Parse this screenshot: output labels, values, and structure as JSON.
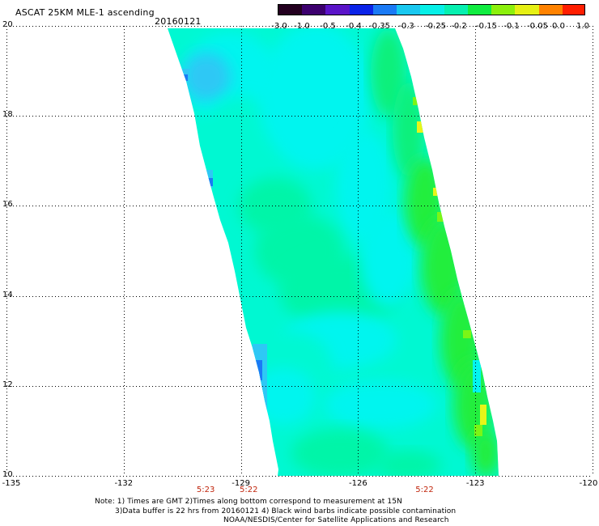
{
  "header": {
    "title": "ASCAT 25KM MLE-1 ascending",
    "date": "20160121"
  },
  "colorbar": {
    "labels": [
      "-3.0",
      "-1.0",
      "-0.5",
      "-0.4",
      "-0.35",
      "-0.3",
      "-0.25",
      "-0.2",
      "-0.15",
      "-0.1",
      "-0.05",
      "0.0",
      "1.0"
    ],
    "colors": [
      "#23001f",
      "#3c006e",
      "#5a14c8",
      "#0a23e8",
      "#1a7af5",
      "#19c8f0",
      "#06f0e8",
      "#06f0b0",
      "#10ec40",
      "#8cf00c",
      "#e6f014",
      "#ff8200",
      "#ff1e00"
    ]
  },
  "map": {
    "lat_labels": [
      "20",
      "18",
      "16",
      "14",
      "12",
      "10"
    ],
    "lon_labels": [
      "-135",
      "-132",
      "-129",
      "-126",
      "-123",
      "-120"
    ],
    "lat_values": [
      20,
      18,
      16,
      14,
      12,
      10
    ],
    "lon_values": [
      -135,
      -132,
      -129,
      -126,
      -123,
      -120
    ],
    "lon_range": [
      -135,
      -120
    ],
    "lat_range": [
      10,
      20
    ],
    "gridlines": "dotted",
    "swath_colors": {
      "cyan": "#03f5ef",
      "aqua": "#00f8d2",
      "teal_green": "#00f5a8",
      "green": "#0af07a",
      "bright_green": "#22ee3c",
      "lime": "#7cf516",
      "yellow": "#e8f518",
      "light_blue": "#2ec8f5",
      "blue": "#1a7af5"
    }
  },
  "pass_times": [
    {
      "label": "5:23",
      "lon": -129.9
    },
    {
      "label": "5:22",
      "lon": -128.8
    },
    {
      "label": "5:22",
      "lon": -124.3
    }
  ],
  "notes": {
    "line1": "Note: 1) Times are GMT 2)Times along bottom correspond to measurement at 15N",
    "line2": "3)Data buffer is 22 hrs from 20160121 4) Black wind barbs indicate possible contamination",
    "line3": "NOAA/NESDIS/Center for Satellite Applications and Research"
  }
}
